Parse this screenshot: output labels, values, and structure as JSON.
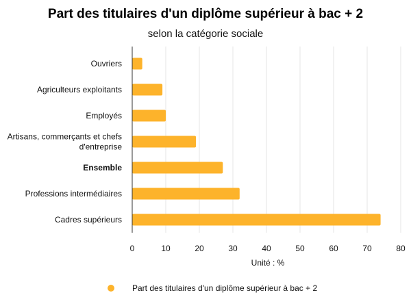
{
  "chart_data": {
    "type": "bar",
    "orientation": "horizontal",
    "title": "Part des titulaires d'un diplôme supérieur à bac + 2",
    "subtitle": "selon la catégorie sociale",
    "xlabel": "Unité : %",
    "xlim": [
      0,
      80
    ],
    "xticks": [
      0,
      10,
      20,
      30,
      40,
      50,
      60,
      70,
      80
    ],
    "grid": true,
    "legend_position": "bottom-left",
    "highlighted_category": "Ensemble",
    "categories": [
      [
        "Ouvriers"
      ],
      [
        "Agriculteurs exploitants"
      ],
      [
        "Employés"
      ],
      [
        "Artisans, commerçants et chefs",
        "d'entreprise"
      ],
      [
        "Ensemble"
      ],
      [
        "Professions intermédiaires"
      ],
      [
        "Cadres supérieurs"
      ]
    ],
    "series": [
      {
        "name": "Part des titulaires d'un diplôme supérieur à bac + 2",
        "color": "#fdb32b",
        "values": [
          3,
          9,
          10,
          19,
          27,
          32,
          74
        ]
      }
    ]
  }
}
